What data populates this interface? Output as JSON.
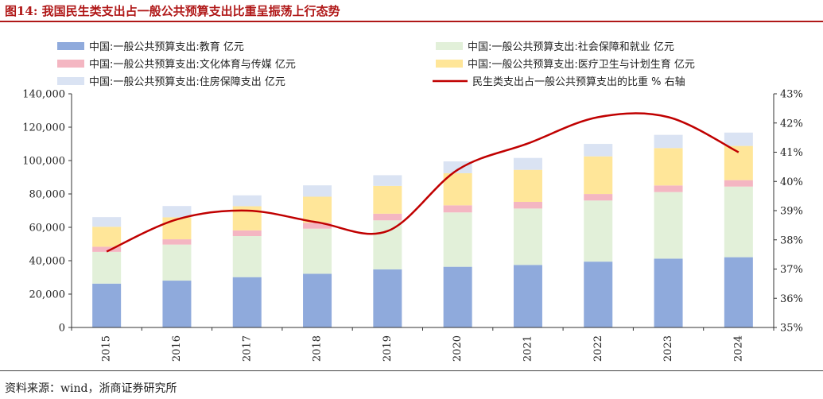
{
  "figure": {
    "title": "图14:   我国民生类支出占一般公共预算支出比重呈振荡上行态势",
    "source": "资料来源：wind，浙商证券研究所"
  },
  "colors": {
    "education": "#8faadc",
    "social_security": "#e2f0d9",
    "culture": "#f4b6c2",
    "health": "#ffe699",
    "housing": "#dae3f3",
    "ratio_line": "#c00000",
    "title_red": "#b01818"
  },
  "chart_data": {
    "type": "bar",
    "stacked": true,
    "categories": [
      "2015",
      "2016",
      "2017",
      "2018",
      "2019",
      "2020",
      "2021",
      "2022",
      "2023",
      "2024"
    ],
    "series": [
      {
        "name": "中国:一般公共预算支出:教育 亿元",
        "key": "education",
        "values": [
          26272,
          28073,
          30153,
          32169,
          34797,
          36360,
          37469,
          39448,
          41242,
          42093
        ]
      },
      {
        "name": "中国:一般公共预算支出:社会保障和就业 亿元",
        "key": "social_security",
        "values": [
          19019,
          21591,
          24612,
          27012,
          29379,
          32569,
          33788,
          36609,
          39883,
          42318
        ]
      },
      {
        "name": "中国:一般公共预算支出:文化体育与传媒 亿元",
        "key": "culture",
        "values": [
          3077,
          3163,
          3392,
          3538,
          3983,
          4245,
          3985,
          3909,
          3960,
          3850
        ]
      },
      {
        "name": "中国:一般公共预算支出:医疗卫生与计划生育 亿元",
        "key": "health",
        "values": [
          11953,
          13159,
          14451,
          15624,
          16665,
          19216,
          19205,
          22537,
          22393,
          20500
        ]
      },
      {
        "name": "中国:一般公共预算支出:住房保障支出 亿元",
        "key": "housing",
        "values": [
          5797,
          6776,
          6552,
          6806,
          6401,
          7106,
          7122,
          7481,
          7925,
          8000
        ]
      },
      {
        "name": "民生类支出占一般公共预算支出的比重 % 右轴",
        "key": "ratio",
        "type": "line",
        "axis": "right",
        "values": [
          37.6,
          38.7,
          39.0,
          38.6,
          38.3,
          40.4,
          41.3,
          42.2,
          42.2,
          41.0
        ]
      }
    ],
    "y_left": {
      "min": 0,
      "max": 140000,
      "ticks": [
        "0",
        "20,000",
        "40,000",
        "60,000",
        "80,000",
        "100,000",
        "120,000",
        "140,000"
      ]
    },
    "y_right": {
      "min": 35,
      "max": 43,
      "ticks": [
        "35%",
        "36%",
        "37%",
        "38%",
        "39%",
        "40%",
        "41%",
        "42%",
        "43%"
      ]
    },
    "legend_position": "top",
    "grid": false
  }
}
